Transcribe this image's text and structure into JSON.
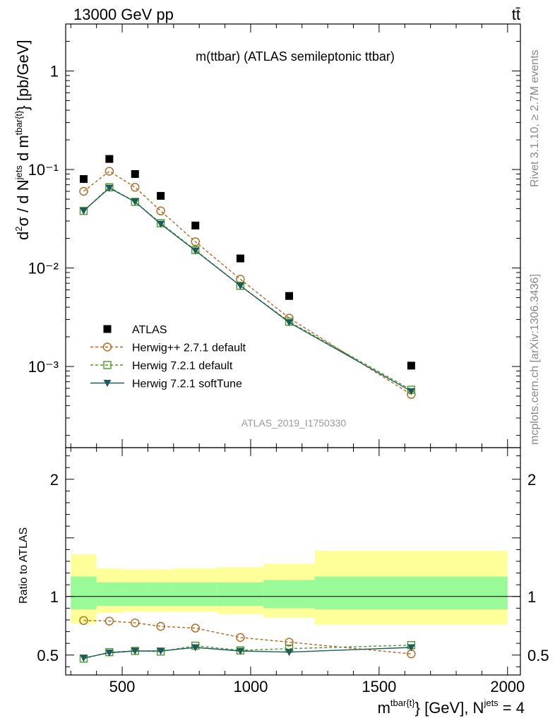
{
  "header": {
    "left": "13000 GeV pp",
    "right": "tt̄"
  },
  "side_labels": {
    "rivet": "Rivet 3.1.10, ≥ 2.7M events",
    "mcplots": "mcplots.cern.ch [arXiv:1306.3436]"
  },
  "chart_data": [
    {
      "type": "line",
      "title": "m(ttbar) (ATLAS semileptonic ttbar)",
      "watermark": "ATLAS_2019_I1750330",
      "ylabel": "d²σ / d N^jets d m^tbar{t}} [pb/GeV]",
      "yscale": "log",
      "ylim": [
        0.00015,
        3.0
      ],
      "xlim": [
        280,
        2050
      ],
      "y_ticks": [
        {
          "value": 1,
          "label": "1"
        },
        {
          "value": 0.1,
          "label": "10⁻¹"
        },
        {
          "value": 0.01,
          "label": "10⁻²"
        },
        {
          "value": 0.001,
          "label": "10⁻³"
        }
      ],
      "legend_position": "bottom-left",
      "x": [
        350,
        450,
        550,
        650,
        785,
        960,
        1150,
        1625
      ],
      "series": [
        {
          "name": "ATLAS",
          "color": "#000000",
          "marker": "square-filled",
          "line": "none",
          "values": [
            0.08,
            0.128,
            0.09,
            0.054,
            0.027,
            0.0125,
            0.0052,
            0.00102
          ]
        },
        {
          "name": "Herwig++ 2.7.1 default",
          "color": "#b5651d",
          "marker": "circle-open",
          "line": "dashed",
          "values": [
            0.06,
            0.096,
            0.066,
            0.038,
            0.0185,
            0.0077,
            0.0031,
            0.00052
          ]
        },
        {
          "name": "Herwig 7.2.1 default",
          "color": "#4a9a2a",
          "marker": "square-open",
          "line": "dashed",
          "values": [
            0.038,
            0.066,
            0.047,
            0.0285,
            0.0152,
            0.0066,
            0.00285,
            0.00058
          ]
        },
        {
          "name": "Herwig 7.2.1 softTune",
          "color": "#1d5a5a",
          "marker": "triangle-down-filled",
          "line": "solid",
          "values": [
            0.038,
            0.065,
            0.047,
            0.028,
            0.015,
            0.0066,
            0.0028,
            0.00056
          ]
        }
      ]
    },
    {
      "type": "line",
      "ylabel": "Ratio to ATLAS",
      "xlabel": "m^tbar{t}} [GeV], N^jets = 4",
      "ylim": [
        0.33,
        2.27
      ],
      "xlim": [
        280,
        2050
      ],
      "y_ticks": [
        {
          "value": 0.5,
          "label": "0.5"
        },
        {
          "value": 1,
          "label": "1"
        },
        {
          "value": 2,
          "label": "2"
        }
      ],
      "x_ticks": [
        {
          "value": 500,
          "label": "500"
        },
        {
          "value": 1000,
          "label": "1000"
        },
        {
          "value": 1500,
          "label": "1500"
        },
        {
          "value": 2000,
          "label": "2000"
        }
      ],
      "bands": [
        {
          "x0": 300,
          "x1": 400,
          "inner": [
            0.89,
            1.17
          ],
          "outer": [
            0.77,
            1.36
          ]
        },
        {
          "x0": 400,
          "x1": 500,
          "inner": [
            0.92,
            1.12
          ],
          "outer": [
            0.86,
            1.24
          ]
        },
        {
          "x0": 500,
          "x1": 600,
          "inner": [
            0.92,
            1.12
          ],
          "outer": [
            0.87,
            1.23
          ]
        },
        {
          "x0": 600,
          "x1": 700,
          "inner": [
            0.92,
            1.12
          ],
          "outer": [
            0.87,
            1.23
          ]
        },
        {
          "x0": 700,
          "x1": 870,
          "inner": [
            0.92,
            1.12
          ],
          "outer": [
            0.87,
            1.24
          ]
        },
        {
          "x0": 870,
          "x1": 1050,
          "inner": [
            0.92,
            1.12
          ],
          "outer": [
            0.85,
            1.25
          ]
        },
        {
          "x0": 1050,
          "x1": 1250,
          "inner": [
            0.9,
            1.14
          ],
          "outer": [
            0.82,
            1.28
          ]
        },
        {
          "x0": 1250,
          "x1": 2000,
          "inner": [
            0.89,
            1.17
          ],
          "outer": [
            0.76,
            1.39
          ]
        }
      ],
      "x": [
        350,
        450,
        550,
        650,
        785,
        960,
        1150,
        1625
      ],
      "series": [
        {
          "name": "Herwig++ 2.7.1 default",
          "color": "#b5651d",
          "marker": "circle-open",
          "line": "dashed",
          "values": [
            0.795,
            0.79,
            0.775,
            0.745,
            0.73,
            0.65,
            0.61,
            0.51
          ]
        },
        {
          "name": "Herwig 7.2.1 default",
          "color": "#4a9a2a",
          "marker": "square-open",
          "line": "dashed",
          "values": [
            0.47,
            0.525,
            0.535,
            0.53,
            0.58,
            0.54,
            0.555,
            0.585
          ]
        },
        {
          "name": "Herwig 7.2.1 softTune",
          "color": "#1d5a5a",
          "marker": "triangle-down-filled",
          "line": "solid",
          "values": [
            0.475,
            0.52,
            0.535,
            0.535,
            0.565,
            0.535,
            0.525,
            0.565
          ]
        }
      ]
    }
  ]
}
